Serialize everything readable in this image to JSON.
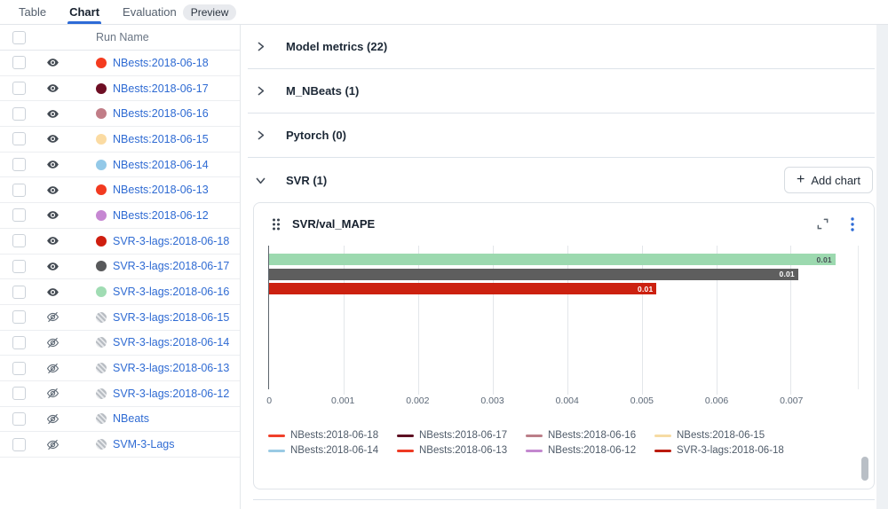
{
  "tabs": {
    "table": "Table",
    "chart": "Chart",
    "evaluation": "Evaluation",
    "preview_badge": "Preview"
  },
  "run_table": {
    "header": "Run Name",
    "rows": [
      {
        "name": "NBests:2018-06-18",
        "color": "#f43b1f",
        "visible": true
      },
      {
        "name": "NBests:2018-06-17",
        "color": "#6e0e24",
        "visible": true
      },
      {
        "name": "NBests:2018-06-16",
        "color": "#c17d87",
        "visible": true
      },
      {
        "name": "NBests:2018-06-15",
        "color": "#fbdba2",
        "visible": true
      },
      {
        "name": "NBests:2018-06-14",
        "color": "#93c9e8",
        "visible": true
      },
      {
        "name": "NBests:2018-06-13",
        "color": "#f23a20",
        "visible": true
      },
      {
        "name": "NBests:2018-06-12",
        "color": "#c687d2",
        "visible": true
      },
      {
        "name": "SVR-3-lags:2018-06-18",
        "color": "#cf1e0f",
        "visible": true
      },
      {
        "name": "SVR-3-lags:2018-06-17",
        "color": "#58595b",
        "visible": true
      },
      {
        "name": "SVR-3-lags:2018-06-16",
        "color": "#a0dcb3",
        "visible": true
      },
      {
        "name": "SVR-3-lags:2018-06-15",
        "color": null,
        "visible": false
      },
      {
        "name": "SVR-3-lags:2018-06-14",
        "color": null,
        "visible": false
      },
      {
        "name": "SVR-3-lags:2018-06-13",
        "color": null,
        "visible": false
      },
      {
        "name": "SVR-3-lags:2018-06-12",
        "color": null,
        "visible": false
      },
      {
        "name": "NBeats",
        "color": null,
        "visible": false
      },
      {
        "name": "SVM-3-Lags",
        "color": null,
        "visible": false
      }
    ]
  },
  "panel": {
    "sections": [
      {
        "title": "Model metrics (22)",
        "expanded": false
      },
      {
        "title": "M_NBeats (1)",
        "expanded": false
      },
      {
        "title": "Pytorch (0)",
        "expanded": false
      },
      {
        "title": "SVR (1)",
        "expanded": true
      }
    ],
    "add_chart_label": "Add chart"
  },
  "chart_data": {
    "type": "bar",
    "orientation": "horizontal",
    "title": "SVR/val_MAPE",
    "xlabel": "",
    "ylabel": "",
    "xlim": [
      0,
      0.0079
    ],
    "x_ticks": [
      0,
      0.001,
      0.002,
      0.003,
      0.004,
      0.005,
      0.006,
      0.007
    ],
    "grid": true,
    "legend_position": "bottom",
    "series": [
      {
        "name": "SVR-3-lags:2018-06-16",
        "value": 0.0076,
        "display_label": "0.01",
        "color": "#9cd9af",
        "label_color": "#4a5158"
      },
      {
        "name": "SVR-3-lags:2018-06-17",
        "value": 0.0071,
        "display_label": "0.01",
        "color": "#5e5e5e",
        "label_color": "#ffffff"
      },
      {
        "name": "SVR-3-lags:2018-06-18",
        "value": 0.0052,
        "display_label": "0.01",
        "color": "#cc2110",
        "label_color": "#ffffff"
      }
    ],
    "legend": [
      {
        "name": "NBests:2018-06-18",
        "color": "#f0402a"
      },
      {
        "name": "NBests:2018-06-17",
        "color": "#5d1022"
      },
      {
        "name": "NBests:2018-06-16",
        "color": "#bb7e88"
      },
      {
        "name": "NBests:2018-06-15",
        "color": "#f6dba4"
      },
      {
        "name": "NBests:2018-06-14",
        "color": "#9acae4"
      },
      {
        "name": "NBests:2018-06-13",
        "color": "#ee3a23"
      },
      {
        "name": "NBests:2018-06-12",
        "color": "#c388cf"
      },
      {
        "name": "SVR-3-lags:2018-06-18",
        "color": "#bb1b0d"
      }
    ]
  }
}
